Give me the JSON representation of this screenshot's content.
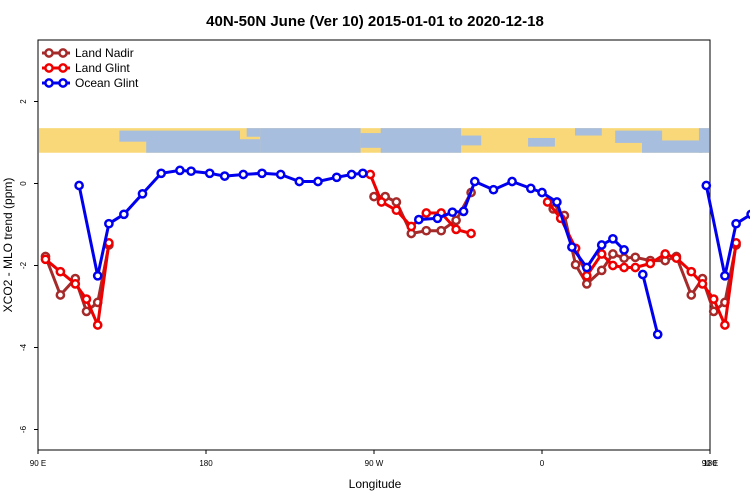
{
  "chart_data": {
    "type": "line",
    "title": "40N-50N June (Ver 10)   2015-01-01 to 2020-12-18",
    "xlabel": "Longitude",
    "ylabel": "XCO2 - MLO trend (ppm)",
    "x_domain": [
      90,
      450
    ],
    "y_domain": [
      -6.5,
      3.5
    ],
    "x_ticks": [
      {
        "value": 90,
        "label": "90 E"
      },
      {
        "value": 180,
        "label": "180"
      },
      {
        "value": 270,
        "label": "90 W"
      },
      {
        "value": 360,
        "label": "0"
      },
      {
        "value": 450,
        "label": "90 E"
      },
      {
        "value": 540,
        "label": "180"
      }
    ],
    "y_ticks": [
      {
        "value": 2,
        "label": "2"
      },
      {
        "value": 0,
        "label": "0"
      },
      {
        "value": -2,
        "label": "-2"
      },
      {
        "value": -4,
        "label": "-4"
      },
      {
        "value": -6,
        "label": "-6"
      }
    ],
    "map_band": {
      "y_top": 1.35,
      "y_bottom": 0.75,
      "land_color": "#f8d878",
      "ocean_color": "#a8bedf"
    },
    "legend_position": "top-left",
    "series": [
      {
        "name": "Land Nadir",
        "color": "#a52a2a",
        "segments": [
          [
            [
              94,
              -1.78
            ],
            [
              102,
              -2.72
            ],
            [
              110,
              -2.32
            ],
            [
              116,
              -3.12
            ],
            [
              122,
              -2.9
            ],
            [
              128,
              -1.5
            ]
          ],
          [
            [
              270,
              -0.32
            ],
            [
              276,
              -0.32
            ],
            [
              282,
              -0.45
            ],
            [
              290,
              -1.22
            ],
            [
              298,
              -1.15
            ],
            [
              306,
              -1.15
            ],
            [
              314,
              -0.9
            ],
            [
              322,
              -0.22
            ]
          ],
          [
            [
              366,
              -0.62
            ],
            [
              372,
              -0.78
            ],
            [
              378,
              -1.98
            ],
            [
              384,
              -2.45
            ],
            [
              392,
              -2.12
            ],
            [
              398,
              -1.72
            ],
            [
              404,
              -1.82
            ],
            [
              410,
              -1.8
            ],
            [
              418,
              -1.88
            ],
            [
              426,
              -1.88
            ],
            [
              432,
              -1.78
            ],
            [
              440,
              -2.72
            ],
            [
              446,
              -2.32
            ],
            [
              452,
              -3.12
            ],
            [
              458,
              -2.9
            ],
            [
              464,
              -1.5
            ]
          ]
        ]
      },
      {
        "name": "Land Glint",
        "color": "#ee0000",
        "segments": [
          [
            [
              94,
              -1.85
            ],
            [
              102,
              -2.15
            ],
            [
              110,
              -2.45
            ],
            [
              116,
              -2.82
            ],
            [
              122,
              -3.45
            ],
            [
              128,
              -1.45
            ]
          ],
          [
            [
              268,
              0.22
            ],
            [
              274,
              -0.45
            ],
            [
              282,
              -0.65
            ],
            [
              290,
              -1.05
            ],
            [
              298,
              -0.72
            ],
            [
              306,
              -0.72
            ],
            [
              314,
              -1.12
            ],
            [
              322,
              -1.22
            ]
          ],
          [
            [
              363,
              -0.45
            ],
            [
              370,
              -0.85
            ],
            [
              378,
              -1.58
            ],
            [
              384,
              -2.25
            ],
            [
              392,
              -1.72
            ],
            [
              398,
              -2.0
            ],
            [
              404,
              -2.05
            ],
            [
              410,
              -2.05
            ],
            [
              418,
              -1.95
            ],
            [
              426,
              -1.72
            ],
            [
              432,
              -1.82
            ],
            [
              440,
              -2.15
            ],
            [
              446,
              -2.45
            ],
            [
              452,
              -2.82
            ],
            [
              458,
              -3.45
            ],
            [
              464,
              -1.45
            ]
          ]
        ]
      },
      {
        "name": "Ocean Glint",
        "color": "#0000ee",
        "segments": [
          [
            [
              112,
              -0.05
            ],
            [
              122,
              -2.25
            ],
            [
              128,
              -0.98
            ],
            [
              136,
              -0.75
            ],
            [
              146,
              -0.25
            ],
            [
              156,
              0.25
            ],
            [
              166,
              0.32
            ],
            [
              172,
              0.3
            ],
            [
              182,
              0.25
            ],
            [
              190,
              0.18
            ],
            [
              200,
              0.22
            ],
            [
              210,
              0.25
            ],
            [
              220,
              0.22
            ],
            [
              230,
              0.05
            ],
            [
              240,
              0.05
            ],
            [
              250,
              0.15
            ],
            [
              258,
              0.22
            ],
            [
              264,
              0.25
            ]
          ],
          [
            [
              294,
              -0.88
            ],
            [
              304,
              -0.85
            ],
            [
              312,
              -0.7
            ],
            [
              318,
              -0.68
            ],
            [
              324,
              0.05
            ],
            [
              334,
              -0.15
            ],
            [
              344,
              0.05
            ],
            [
              354,
              -0.12
            ],
            [
              360,
              -0.22
            ],
            [
              368,
              -0.45
            ],
            [
              376,
              -1.55
            ],
            [
              384,
              -2.05
            ],
            [
              392,
              -1.5
            ],
            [
              398,
              -1.35
            ],
            [
              404,
              -1.62
            ]
          ],
          [
            [
              414,
              -2.22
            ],
            [
              422,
              -3.68
            ]
          ],
          [
            [
              448,
              -0.05
            ],
            [
              458,
              -2.25
            ],
            [
              464,
              -0.98
            ],
            [
              472,
              -0.75
            ],
            [
              482,
              -0.25
            ],
            [
              490,
              0.25
            ]
          ]
        ]
      }
    ]
  }
}
